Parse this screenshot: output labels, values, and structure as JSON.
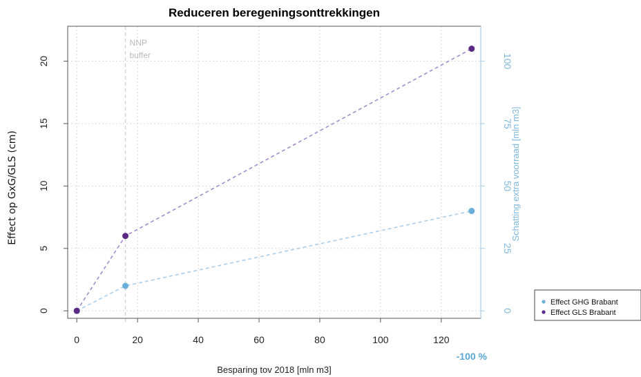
{
  "chart_data": {
    "type": "line",
    "title": "Reduceren beregeningsonttrekkingen",
    "xlabel": "Besparing tov 2018 [mln m3]",
    "ylabel": "Effect op GxG/GLS (cm)",
    "y2label": "Schatting extra voorraad [mln m3]",
    "xlim": [
      -3,
      133
    ],
    "ylim": [
      -0.6,
      22.8
    ],
    "xticks": [
      0,
      20,
      40,
      60,
      80,
      100,
      120
    ],
    "yticks": [
      0,
      5,
      10,
      15,
      20
    ],
    "y2ticks": [
      0,
      25,
      50,
      75,
      100
    ],
    "y2_per_y": 5,
    "grid": true,
    "annotations": [
      {
        "id": "nnp",
        "text_lines": [
          "NNP",
          "buffer"
        ],
        "x": 16
      },
      {
        "id": "pct",
        "text": "-100 %",
        "x": 130
      }
    ],
    "vline_x": 16,
    "series": [
      {
        "name": "Effect GHG Brabant",
        "color": "#6aaedb",
        "line_color": "#a9cdea",
        "x": [
          0,
          16,
          130
        ],
        "y": [
          0,
          2,
          8
        ]
      },
      {
        "name": "Effect GLS Brabant",
        "color": "#5b2a86",
        "line_color": "#a58ad0",
        "x": [
          0,
          16,
          130
        ],
        "y": [
          0,
          6,
          21
        ]
      }
    ],
    "legend_position": "bottom-right outside"
  }
}
